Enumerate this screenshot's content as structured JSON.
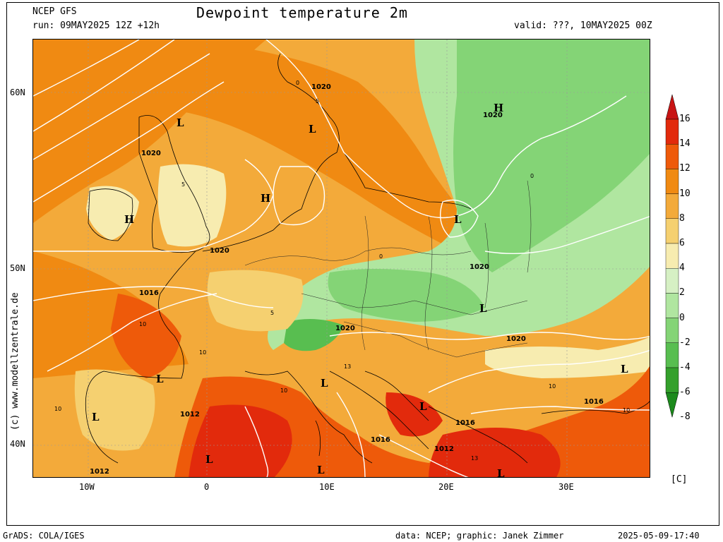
{
  "header": {
    "model": "NCEP GFS",
    "run": "run: 09MAY2025 12Z +12h",
    "title": "Dewpoint temperature 2m",
    "valid": "valid: ???, 10MAY2025 00Z"
  },
  "axes": {
    "lat_labels": [
      "60N",
      "50N",
      "40N"
    ],
    "lon_labels": [
      "10W",
      "0",
      "10E",
      "20E",
      "30E"
    ]
  },
  "colorbar": {
    "labels": [
      "16",
      "14",
      "12",
      "10",
      "8",
      "6",
      "4",
      "2",
      "0",
      "-2",
      "-4",
      "-6",
      "-8"
    ],
    "unit": "[C]",
    "colors": [
      "#c81414",
      "#e22a0c",
      "#ee5a0a",
      "#f08a12",
      "#f3aa3a",
      "#f5d070",
      "#f7ecb0",
      "#d6f0c4",
      "#b0e6a0",
      "#84d476",
      "#58be50",
      "#34a02c",
      "#1c8a1c"
    ]
  },
  "map": {
    "pressure_labels": [
      "1020",
      "1020",
      "1020",
      "1020",
      "1020",
      "1020",
      "1020",
      "1016",
      "1016",
      "1016",
      "1016",
      "1012",
      "1012",
      "1012"
    ],
    "pressure_centers": [
      "L",
      "L",
      "H",
      "H",
      "L",
      "L",
      "H",
      "L",
      "L",
      "L",
      "L",
      "L",
      "L",
      "L",
      "L"
    ],
    "dewpoint_contour_labels": [
      "0",
      "5",
      "10",
      "13"
    ]
  },
  "watermark": "(c) www.modellzentrale.de",
  "footer": {
    "left": "GrADS: COLA/IGES",
    "center": "data: NCEP; graphic: Janek Zimmer",
    "right": "2025-05-09-17:40"
  }
}
